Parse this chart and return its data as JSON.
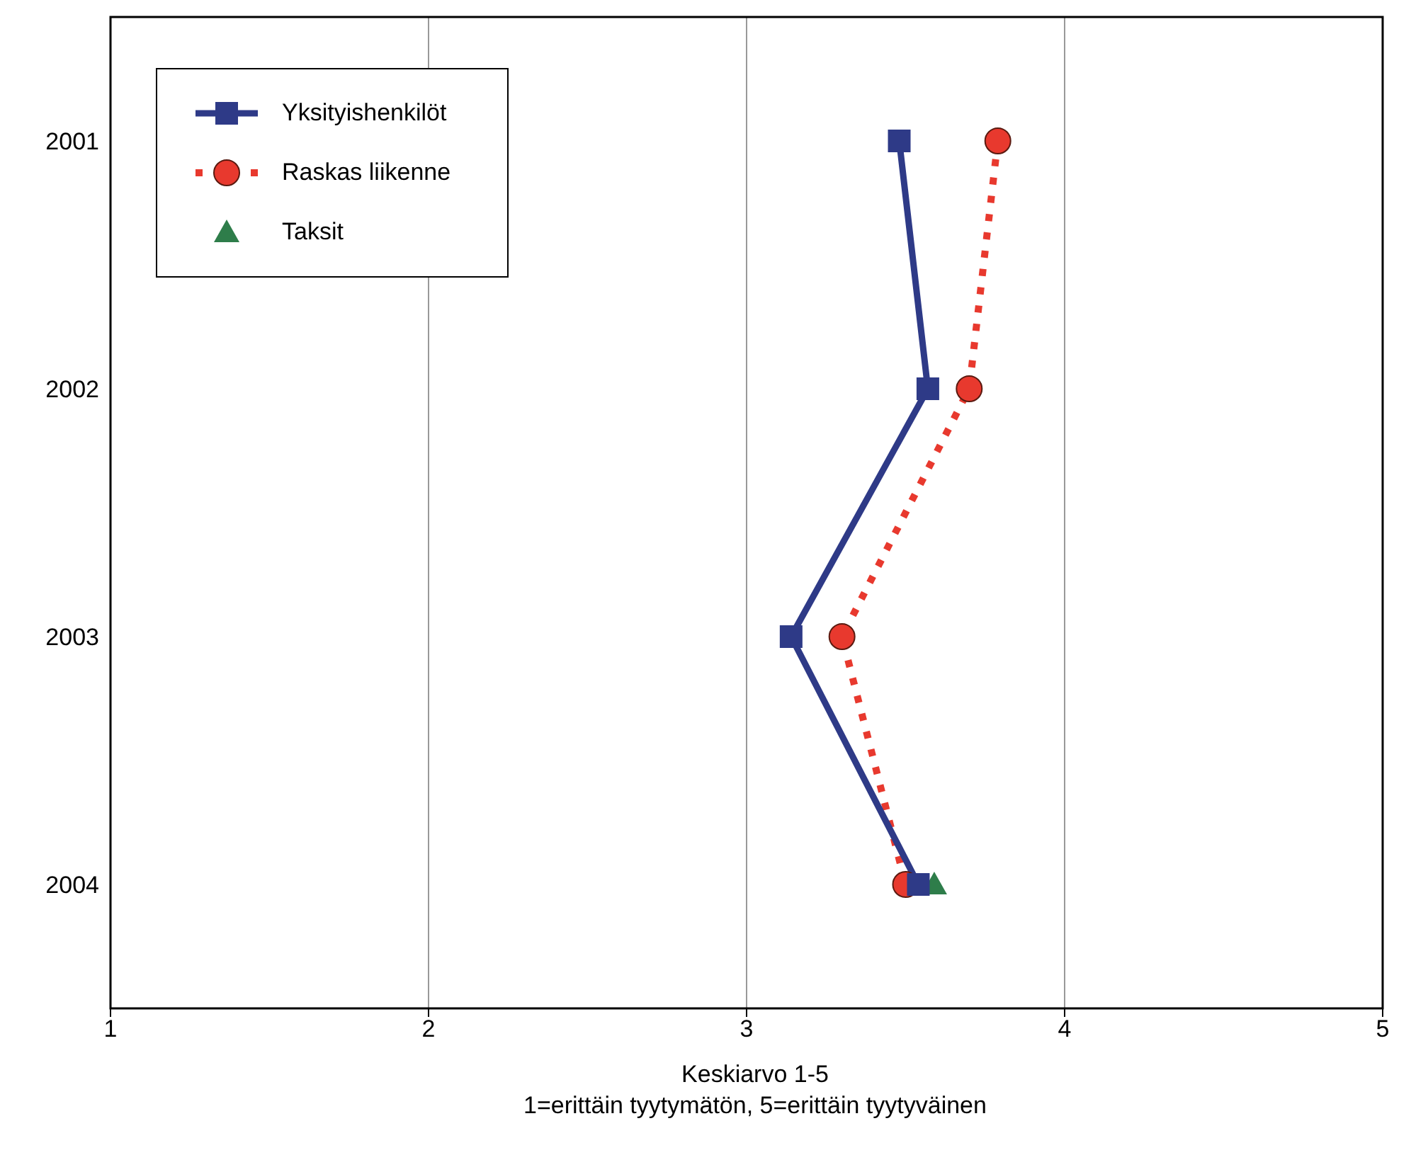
{
  "chart_data": {
    "type": "line",
    "orientation": "horizontal",
    "xlabel": "Keskiarvo 1-5",
    "annotations": [
      "1=erittäin tyytymätön, 5=erittäin tyytyväinen"
    ],
    "categories": [
      "2001",
      "2002",
      "2003",
      "2004"
    ],
    "xlim": [
      1,
      5
    ],
    "xticks": [
      1,
      2,
      3,
      4,
      5
    ],
    "grid": "x",
    "legend": "top left",
    "series": [
      {
        "name": "Yksityishenkilöt",
        "color": "#2e3a87",
        "values": [
          3.48,
          3.57,
          3.14,
          3.54
        ],
        "marker": "square",
        "line_style": "solid"
      },
      {
        "name": "Raskas liikenne",
        "color": "#e8392e",
        "values": [
          3.79,
          3.7,
          3.3,
          3.5
        ],
        "marker": "circle",
        "line_style": "dotted"
      },
      {
        "name": "Taksit",
        "color": "#2e7d4a",
        "values": [
          null,
          null,
          null,
          3.59
        ],
        "marker": "triangle",
        "line_style": "solid"
      }
    ]
  }
}
